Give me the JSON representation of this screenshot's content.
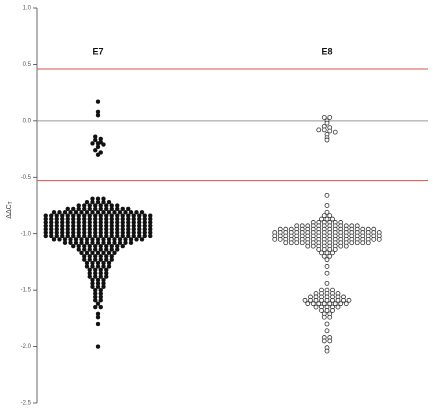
{
  "chart_data": {
    "type": "beeswarm",
    "categories": [
      "E7",
      "E8"
    ],
    "markers": [
      "filled",
      "open"
    ],
    "y_label": "ΔΔC",
    "y_label_sub": "T",
    "ylim": [
      -2.5,
      1
    ],
    "yticks": [
      {
        "value": 1,
        "label": "1.0"
      },
      0.5,
      {
        "value": 0,
        "label": "0.0"
      },
      -0.5,
      {
        "value": -1,
        "label": "-1.0"
      },
      -1.5,
      {
        "value": -2,
        "label": "-2.0"
      },
      -2.5
    ],
    "hlines": [
      {
        "value": 0.46,
        "color": "#d9534f"
      },
      {
        "value": 0,
        "color": "#999999"
      },
      {
        "value": -0.53,
        "color": "#d9534f"
      }
    ],
    "values": [
      [
        0.17,
        0.08,
        0.05,
        -0.14,
        -0.16,
        -0.17,
        -0.19,
        -0.2,
        -0.2,
        -0.21,
        -0.23,
        -0.26,
        -0.28,
        -0.3,
        -0.69,
        -0.69,
        -0.69,
        -0.72,
        -0.72,
        -0.72,
        -0.72,
        -0.72,
        -0.75,
        -0.75,
        -0.75,
        -0.75,
        -0.75,
        -0.75,
        -0.75,
        -0.75,
        -0.78,
        -0.78,
        -0.78,
        -0.78,
        -0.78,
        -0.78,
        -0.78,
        -0.78,
        -0.78,
        -0.78,
        -0.78,
        -0.78,
        -0.81,
        -0.81,
        -0.81,
        -0.81,
        -0.81,
        -0.81,
        -0.81,
        -0.81,
        -0.81,
        -0.81,
        -0.81,
        -0.81,
        -0.81,
        -0.81,
        -0.81,
        -0.81,
        -0.81,
        -0.84,
        -0.84,
        -0.84,
        -0.84,
        -0.84,
        -0.84,
        -0.84,
        -0.84,
        -0.84,
        -0.84,
        -0.84,
        -0.84,
        -0.84,
        -0.84,
        -0.84,
        -0.84,
        -0.84,
        -0.84,
        -0.84,
        -0.84,
        -0.87,
        -0.87,
        -0.87,
        -0.87,
        -0.87,
        -0.87,
        -0.87,
        -0.87,
        -0.87,
        -0.87,
        -0.87,
        -0.87,
        -0.87,
        -0.87,
        -0.87,
        -0.87,
        -0.87,
        -0.87,
        -0.87,
        -0.87,
        -0.9,
        -0.9,
        -0.9,
        -0.9,
        -0.9,
        -0.9,
        -0.9,
        -0.9,
        -0.9,
        -0.9,
        -0.9,
        -0.9,
        -0.9,
        -0.9,
        -0.9,
        -0.9,
        -0.9,
        -0.9,
        -0.9,
        -0.9,
        -0.93,
        -0.93,
        -0.93,
        -0.93,
        -0.93,
        -0.93,
        -0.93,
        -0.93,
        -0.93,
        -0.93,
        -0.93,
        -0.93,
        -0.93,
        -0.93,
        -0.93,
        -0.93,
        -0.93,
        -0.93,
        -0.93,
        -0.93,
        -0.96,
        -0.96,
        -0.96,
        -0.96,
        -0.96,
        -0.96,
        -0.96,
        -0.96,
        -0.96,
        -0.96,
        -0.96,
        -0.96,
        -0.96,
        -0.96,
        -0.96,
        -0.96,
        -0.96,
        -0.96,
        -0.96,
        -0.96,
        -0.99,
        -0.99,
        -0.99,
        -0.99,
        -0.99,
        -0.99,
        -0.99,
        -0.99,
        -0.99,
        -0.99,
        -0.99,
        -0.99,
        -0.99,
        -0.99,
        -0.99,
        -0.99,
        -0.99,
        -0.99,
        -0.99,
        -0.99,
        -1.02,
        -1.02,
        -1.02,
        -1.02,
        -1.02,
        -1.02,
        -1.02,
        -1.02,
        -1.02,
        -1.02,
        -1.02,
        -1.02,
        -1.02,
        -1.02,
        -1.02,
        -1.02,
        -1.02,
        -1.02,
        -1.02,
        -1.02,
        -1.05,
        -1.05,
        -1.05,
        -1.05,
        -1.05,
        -1.05,
        -1.05,
        -1.05,
        -1.05,
        -1.05,
        -1.05,
        -1.05,
        -1.05,
        -1.05,
        -1.05,
        -1.05,
        -1.05,
        -1.08,
        -1.08,
        -1.08,
        -1.08,
        -1.08,
        -1.08,
        -1.08,
        -1.08,
        -1.08,
        -1.08,
        -1.08,
        -1.08,
        -1.08,
        -1.11,
        -1.11,
        -1.11,
        -1.11,
        -1.11,
        -1.11,
        -1.11,
        -1.11,
        -1.11,
        -1.11,
        -1.14,
        -1.14,
        -1.14,
        -1.14,
        -1.14,
        -1.14,
        -1.14,
        -1.14,
        -1.17,
        -1.17,
        -1.17,
        -1.17,
        -1.17,
        -1.17,
        -1.17,
        -1.2,
        -1.2,
        -1.2,
        -1.2,
        -1.2,
        -1.2,
        -1.23,
        -1.23,
        -1.23,
        -1.23,
        -1.23,
        -1.23,
        -1.26,
        -1.26,
        -1.26,
        -1.26,
        -1.26,
        -1.29,
        -1.29,
        -1.29,
        -1.29,
        -1.29,
        -1.32,
        -1.32,
        -1.32,
        -1.32,
        -1.35,
        -1.35,
        -1.35,
        -1.35,
        -1.38,
        -1.38,
        -1.38,
        -1.38,
        -1.41,
        -1.41,
        -1.41,
        -1.44,
        -1.44,
        -1.44,
        -1.47,
        -1.47,
        -1.47,
        -1.5,
        -1.5,
        -1.53,
        -1.53,
        -1.56,
        -1.56,
        -1.59,
        -1.59,
        -1.62,
        -1.65,
        -1.65,
        -1.71,
        -1.74,
        -1.8,
        -2.0
      ],
      [
        0.03,
        0.03,
        0.0,
        -0.02,
        -0.05,
        -0.06,
        -0.08,
        -0.08,
        -0.09,
        -0.1,
        -0.12,
        -0.15,
        -0.17,
        -0.66,
        -0.75,
        -0.81,
        -0.84,
        -0.84,
        -0.87,
        -0.87,
        -0.87,
        -0.9,
        -0.9,
        -0.9,
        -0.9,
        -0.9,
        -0.9,
        -0.93,
        -0.93,
        -0.93,
        -0.93,
        -0.93,
        -0.93,
        -0.93,
        -0.93,
        -0.93,
        -0.93,
        -0.93,
        -0.93,
        -0.96,
        -0.96,
        -0.96,
        -0.96,
        -0.96,
        -0.96,
        -0.96,
        -0.96,
        -0.96,
        -0.96,
        -0.96,
        -0.96,
        -0.96,
        -0.96,
        -0.96,
        -0.96,
        -0.96,
        -0.96,
        -0.99,
        -0.99,
        -0.99,
        -0.99,
        -0.99,
        -0.99,
        -0.99,
        -0.99,
        -0.99,
        -0.99,
        -0.99,
        -0.99,
        -0.99,
        -0.99,
        -0.99,
        -0.99,
        -0.99,
        -0.99,
        -0.99,
        -0.99,
        -1.02,
        -1.02,
        -1.02,
        -1.02,
        -1.02,
        -1.02,
        -1.02,
        -1.02,
        -1.02,
        -1.02,
        -1.02,
        -1.02,
        -1.02,
        -1.02,
        -1.02,
        -1.02,
        -1.02,
        -1.02,
        -1.02,
        -1.02,
        -1.05,
        -1.05,
        -1.05,
        -1.05,
        -1.05,
        -1.05,
        -1.05,
        -1.05,
        -1.05,
        -1.05,
        -1.05,
        -1.05,
        -1.05,
        -1.05,
        -1.05,
        -1.05,
        -1.05,
        -1.05,
        -1.05,
        -1.05,
        -1.08,
        -1.08,
        -1.08,
        -1.08,
        -1.08,
        -1.08,
        -1.08,
        -1.08,
        -1.08,
        -1.08,
        -1.08,
        -1.08,
        -1.08,
        -1.08,
        -1.08,
        -1.08,
        -1.11,
        -1.11,
        -1.11,
        -1.11,
        -1.11,
        -1.11,
        -1.11,
        -1.11,
        -1.14,
        -1.14,
        -1.14,
        -1.14,
        -1.17,
        -1.17,
        -1.17,
        -1.2,
        -1.2,
        -1.23,
        -1.29,
        -1.35,
        -1.44,
        -1.5,
        -1.5,
        -1.5,
        -1.53,
        -1.53,
        -1.53,
        -1.53,
        -1.53,
        -1.56,
        -1.56,
        -1.56,
        -1.56,
        -1.56,
        -1.56,
        -1.56,
        -1.59,
        -1.59,
        -1.59,
        -1.59,
        -1.59,
        -1.59,
        -1.59,
        -1.59,
        -1.59,
        -1.62,
        -1.62,
        -1.62,
        -1.62,
        -1.62,
        -1.62,
        -1.62,
        -1.62,
        -1.65,
        -1.65,
        -1.65,
        -1.65,
        -1.65,
        -1.68,
        -1.68,
        -1.68,
        -1.71,
        -1.71,
        -1.74,
        -1.74,
        -1.8,
        -1.86,
        -1.92,
        -1.92,
        -1.95,
        -1.95,
        -2.01,
        -2.04
      ]
    ]
  }
}
